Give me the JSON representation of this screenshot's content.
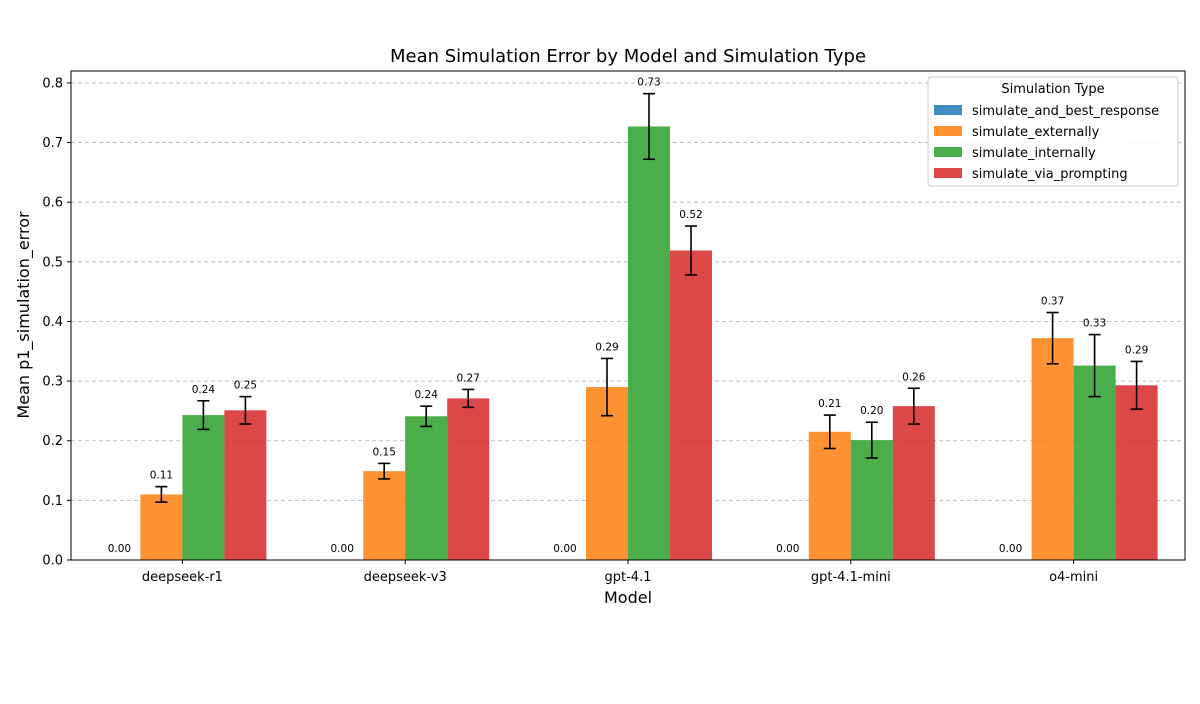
{
  "chart_data": {
    "type": "bar",
    "title": "Mean Simulation Error by Model and Simulation Type",
    "xlabel": "Model",
    "ylabel": "Mean p1_simulation_error",
    "categories": [
      "deepseek-r1",
      "deepseek-v3",
      "gpt-4.1",
      "gpt-4.1-mini",
      "o4-mini"
    ],
    "ylim": [
      0,
      0.82
    ],
    "yticks": [
      "0.0",
      "0.1",
      "0.2",
      "0.3",
      "0.4",
      "0.5",
      "0.6",
      "0.7",
      "0.8"
    ],
    "grid": "y-dashed",
    "legend": {
      "title": "Simulation Type",
      "placement": "top-right"
    },
    "series": [
      {
        "name": "simulate_and_best_response",
        "color": "#1f77b4",
        "values": [
          0.0,
          0.0,
          0.0,
          0.0,
          0.0
        ],
        "errors": [
          0.0,
          0.0,
          0.0,
          0.0,
          0.0
        ],
        "labels": [
          "0.00",
          "0.00",
          "0.00",
          "0.00",
          "0.00"
        ]
      },
      {
        "name": "simulate_externally",
        "color": "#ff7f0e",
        "values": [
          0.11,
          0.149,
          0.29,
          0.215,
          0.372
        ],
        "errors": [
          0.013,
          0.013,
          0.048,
          0.028,
          0.043
        ],
        "labels": [
          "0.11",
          "0.15",
          "0.29",
          "0.21",
          "0.37"
        ]
      },
      {
        "name": "simulate_internally",
        "color": "#2ca02c",
        "values": [
          0.243,
          0.241,
          0.727,
          0.201,
          0.326
        ],
        "errors": [
          0.024,
          0.017,
          0.055,
          0.03,
          0.052
        ],
        "labels": [
          "0.24",
          "0.24",
          "0.73",
          "0.20",
          "0.33"
        ]
      },
      {
        "name": "simulate_via_prompting",
        "color": "#d62728",
        "values": [
          0.251,
          0.271,
          0.519,
          0.258,
          0.293
        ],
        "errors": [
          0.023,
          0.015,
          0.041,
          0.03,
          0.04
        ],
        "labels": [
          "0.25",
          "0.27",
          "0.52",
          "0.26",
          "0.29"
        ]
      }
    ]
  }
}
